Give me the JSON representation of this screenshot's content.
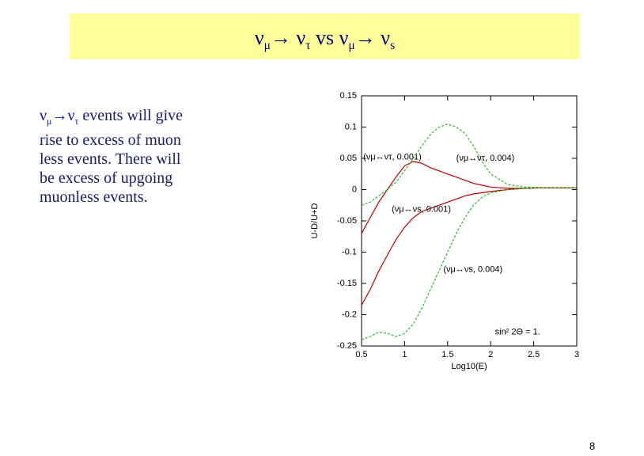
{
  "title": [
    {
      "text": "ν"
    },
    {
      "text": "μ",
      "sub": true
    },
    {
      "text": "→ ν"
    },
    {
      "text": "τ",
      "sub": true
    },
    {
      "text": "  vs ν"
    },
    {
      "text": "μ",
      "sub": true
    },
    {
      "text": "→ ν"
    },
    {
      "text": "s",
      "sub": true
    }
  ],
  "body": {
    "lead": [
      {
        "text": "ν"
      },
      {
        "text": "μ",
        "sub": true
      },
      {
        "text": "→ν"
      },
      {
        "text": "τ",
        "sub": true
      }
    ],
    "lines": [
      " events will give",
      "rise to excess of muon",
      "less events. There will",
      "be excess of upgoing",
      "muonless events."
    ]
  },
  "page_number": 8,
  "chart_data": {
    "type": "line",
    "x_label": "Log10(E)",
    "y_label": "U-D/U+D",
    "x": [
      0.5,
      0.6,
      0.7,
      0.8,
      0.9,
      1.0,
      1.1,
      1.2,
      1.3,
      1.4,
      1.5,
      1.6,
      1.7,
      1.8,
      1.9,
      2.0,
      2.2,
      2.4,
      2.6,
      2.8,
      3.0
    ],
    "series": [
      {
        "name": "(νμ↔ντ, 0.001)",
        "color": "#c00000",
        "dashed": false,
        "values": [
          -0.07,
          -0.045,
          -0.02,
          0,
          0.02,
          0.038,
          0.045,
          0.042,
          0.035,
          0.03,
          0.025,
          0.02,
          0.015,
          0.01,
          0.007,
          0.004,
          0.002,
          0.002,
          0.003,
          0.003,
          0.003
        ]
      },
      {
        "name": "(νμ↔ντ, 0.004)",
        "color": "#22c022",
        "dashed": true,
        "values": [
          -0.025,
          -0.02,
          -0.01,
          0,
          0.012,
          0.03,
          0.05,
          0.07,
          0.088,
          0.1,
          0.105,
          0.1,
          0.09,
          0.07,
          0.045,
          0.025,
          0.008,
          0.004,
          0.003,
          0.003,
          0.003
        ]
      },
      {
        "name": "(νμ↔νs, 0.001)",
        "color": "#c00000",
        "dashed": false,
        "values": [
          -0.185,
          -0.16,
          -0.13,
          -0.105,
          -0.08,
          -0.06,
          -0.045,
          -0.035,
          -0.03,
          -0.025,
          -0.02,
          -0.015,
          -0.01,
          -0.007,
          -0.005,
          -0.003,
          0,
          0.002,
          0.003,
          0.003,
          0.003
        ]
      },
      {
        "name": "(νμ↔νs, 0.004)",
        "color": "#22c022",
        "dashed": true,
        "values": [
          -0.24,
          -0.235,
          -0.228,
          -0.23,
          -0.235,
          -0.23,
          -0.215,
          -0.19,
          -0.16,
          -0.13,
          -0.1,
          -0.07,
          -0.045,
          -0.025,
          -0.012,
          -0.005,
          0,
          0.002,
          0.003,
          0.003,
          0.003
        ]
      }
    ],
    "annotations": [
      "sin² 2Θ = 1."
    ],
    "xlim": [
      0.5,
      3
    ],
    "ylim": [
      -0.25,
      0.15
    ],
    "xticks": [
      0.5,
      1,
      1.5,
      2,
      2.5,
      3
    ],
    "yticks": [
      0.15,
      0.1,
      0.05,
      0,
      -0.05,
      -0.1,
      -0.15,
      -0.2,
      -0.25
    ],
    "grid": false
  }
}
